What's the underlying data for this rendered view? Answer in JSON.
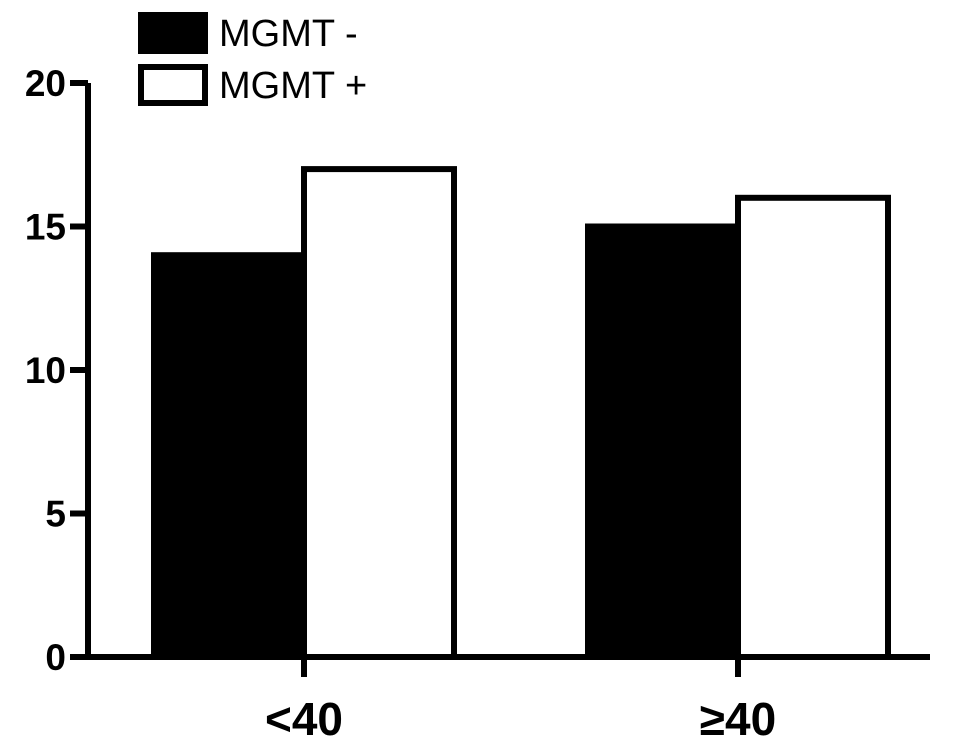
{
  "chart_data": {
    "type": "bar",
    "categories": [
      "<40",
      "≥40"
    ],
    "series": [
      {
        "name": "MGMT -",
        "values": [
          14,
          15
        ],
        "fill": "#000000"
      },
      {
        "name": "MGMT +",
        "values": [
          17,
          16
        ],
        "fill": "#ffffff"
      }
    ],
    "ylim": [
      0,
      20
    ],
    "yticks": [
      0,
      5,
      10,
      15,
      20
    ],
    "ytick_labels": [
      "0",
      "5",
      "10",
      "15",
      "20"
    ],
    "title": "",
    "xlabel": "",
    "ylabel": "",
    "legend_position": "top-left",
    "grid": false
  }
}
